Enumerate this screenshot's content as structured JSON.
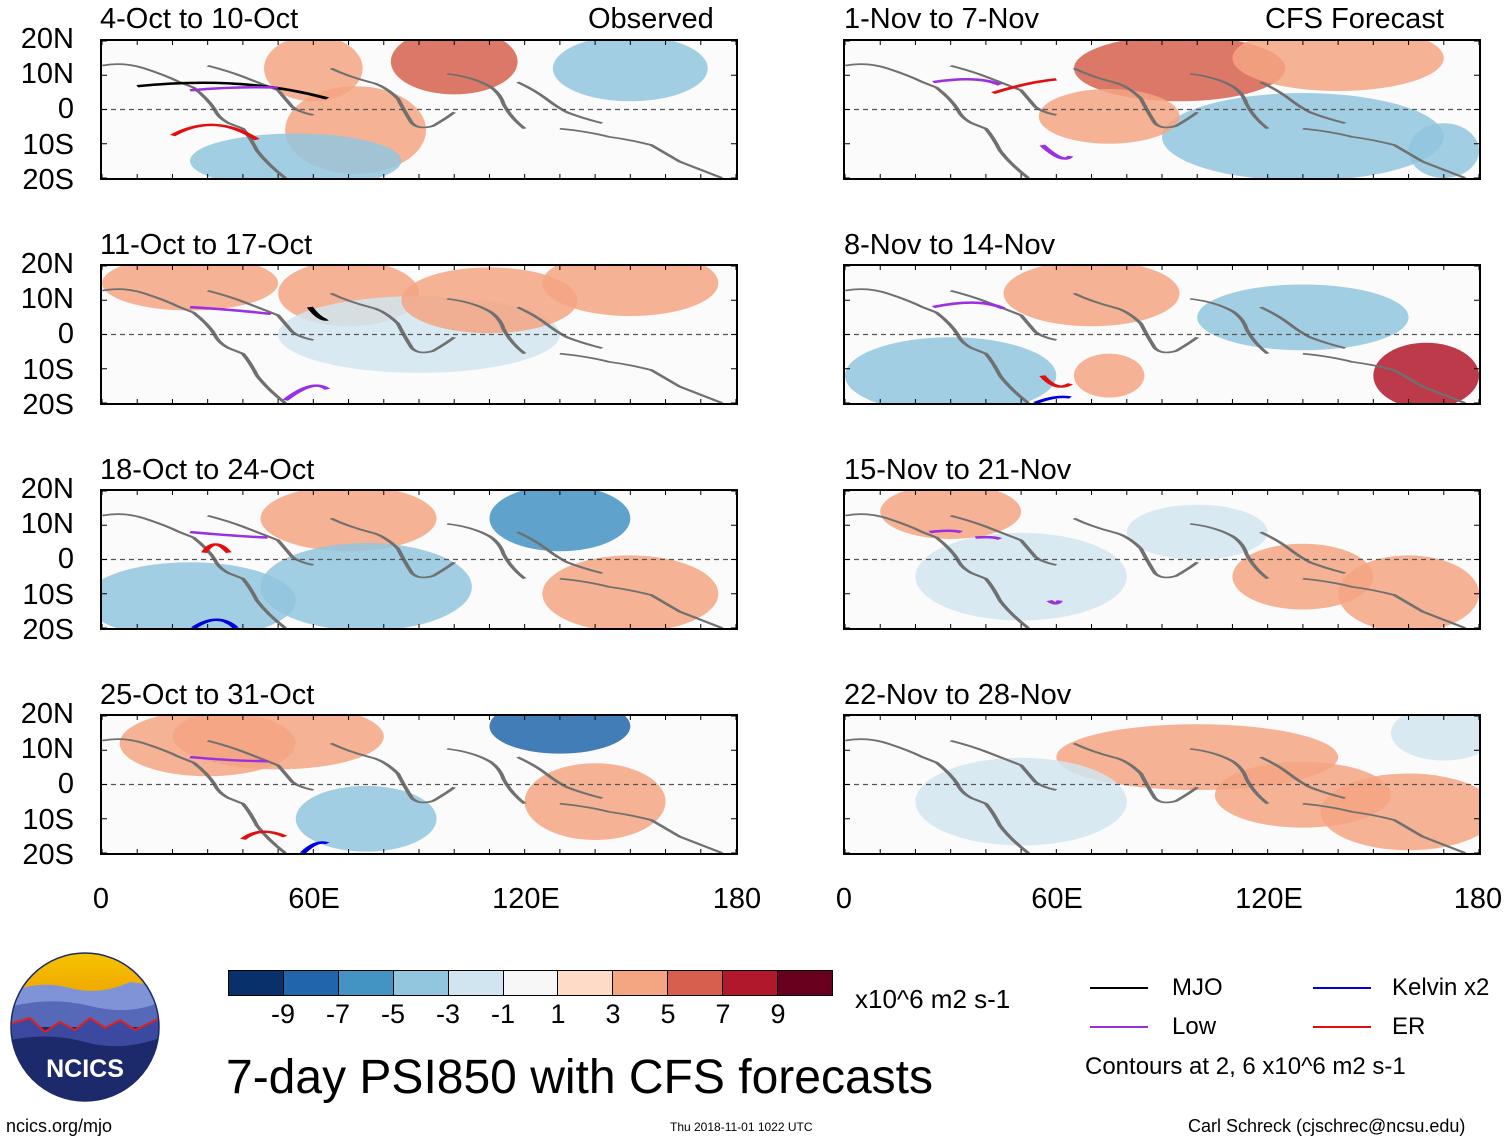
{
  "observed_label": "Observed",
  "forecast_label": "CFS Forecast",
  "observed_panels": [
    {
      "title": "4-Oct to 10-Oct"
    },
    {
      "title": "11-Oct to 17-Oct"
    },
    {
      "title": "18-Oct to 24-Oct"
    },
    {
      "title": "25-Oct to 31-Oct"
    }
  ],
  "forecast_panels": [
    {
      "title": "1-Nov to 7-Nov"
    },
    {
      "title": "8-Nov to 14-Nov"
    },
    {
      "title": "15-Nov to 21-Nov"
    },
    {
      "title": "22-Nov to 28-Nov"
    }
  ],
  "y_ticks": [
    "20N",
    "10N",
    "0",
    "10S",
    "20S"
  ],
  "x_ticks": [
    "0",
    "60E",
    "120E",
    "180"
  ],
  "colorbar": {
    "ticks": [
      "-9",
      "-7",
      "-5",
      "-3",
      "-1",
      "1",
      "3",
      "5",
      "7",
      "9"
    ],
    "colors": [
      "#08306b",
      "#2166ac",
      "#4393c3",
      "#92c5de",
      "#d1e5f0",
      "#f7f7f7",
      "#fddbc7",
      "#f4a582",
      "#d6604d",
      "#b2182b",
      "#67001f"
    ],
    "units": "x10^6 m2 s-1"
  },
  "legend": {
    "items": [
      {
        "label": "MJO",
        "color": "#000000"
      },
      {
        "label": "Kelvin x2",
        "color": "#0000dd"
      },
      {
        "label": "Low",
        "color": "#9b30e0"
      },
      {
        "label": "ER",
        "color": "#e01010"
      }
    ],
    "contours_note": "Contours at 2, 6 x10^6 m2 s-1"
  },
  "logo_text": "NCICS",
  "main_title": "7-day PSI850 with CFS forecasts",
  "footer": {
    "left": "ncics.org/mjo",
    "center": "Thu 2018-11-01 1022 UTC",
    "right": "Carl Schreck (cjschrec@ncsu.edu)"
  }
}
